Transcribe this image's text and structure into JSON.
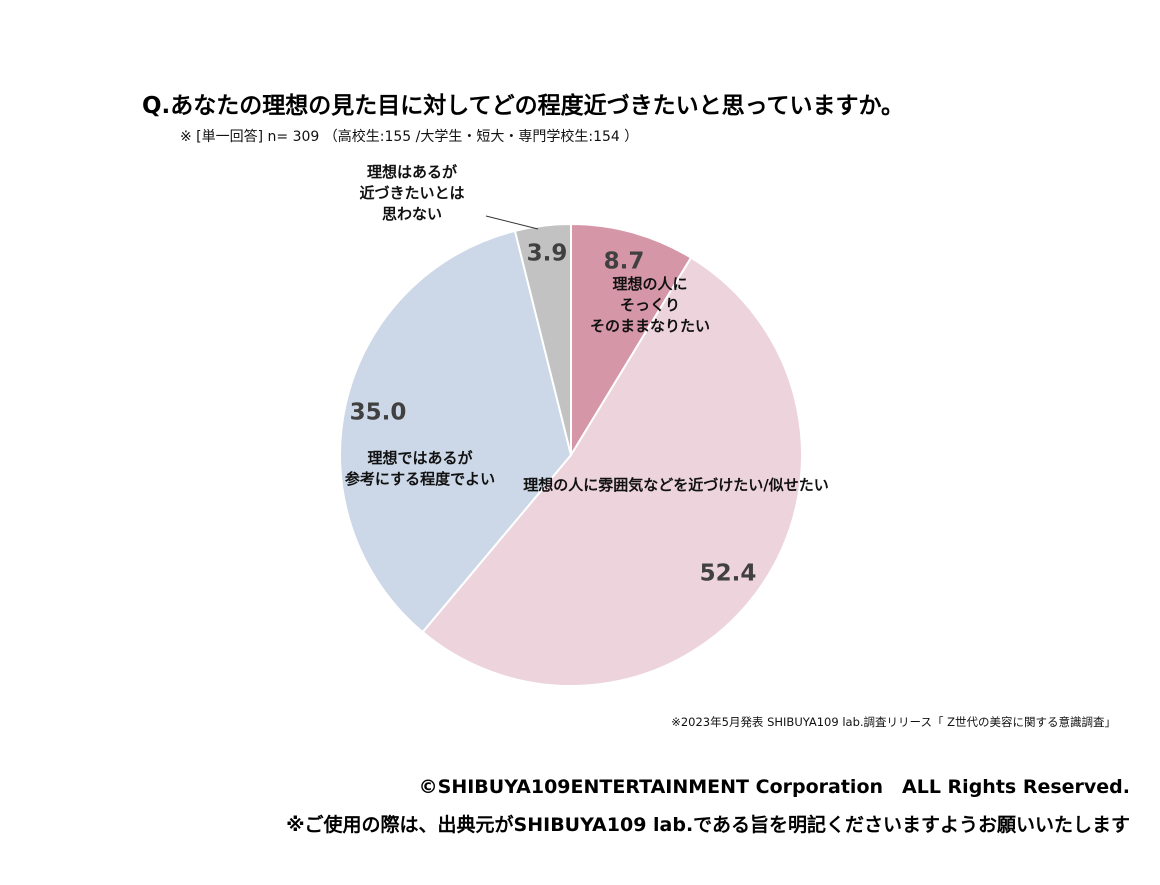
{
  "chart_data": {
    "type": "pie",
    "title": "Q.あなたの理想の見た目に対してどの程度近づきたいと思っていますか。",
    "subtitle": "※ [単一回答] n= 309 （高校生:155 /大学生・短大・専門学校生:154 ）",
    "slices": [
      {
        "label": "理想の人に\nそっくり\nそのままなりたい",
        "value": 8.7,
        "value_label": "8.7",
        "color": "#d597a8"
      },
      {
        "label": "理想の人に雰囲気などを近づけたい/似せたい",
        "value": 52.4,
        "value_label": "52.4",
        "color": "#ecd3dc"
      },
      {
        "label": "理想ではあるが\n参考にする程度でよい",
        "value": 35.0,
        "value_label": "35.0",
        "color": "#ccd8e7"
      },
      {
        "label": "理想はあるが\n近づきたいとは\n思わない",
        "value": 3.9,
        "value_label": "3.9",
        "color": "#c2c2c2"
      }
    ],
    "start_angle_deg": 0,
    "direction": "clockwise"
  },
  "footer": {
    "source": "※2023年5月発表 SHIBUYA109 lab.調査リリース「 Z世代の美容に関する意識調査」",
    "copyright": "©SHIBUYA109ENTERTAINMENT Corporation　ALL Rights Reserved.",
    "notice": "※ご使用の際は、出典元がSHIBUYA109 lab.である旨を明記くださいますようお願いいたします"
  }
}
